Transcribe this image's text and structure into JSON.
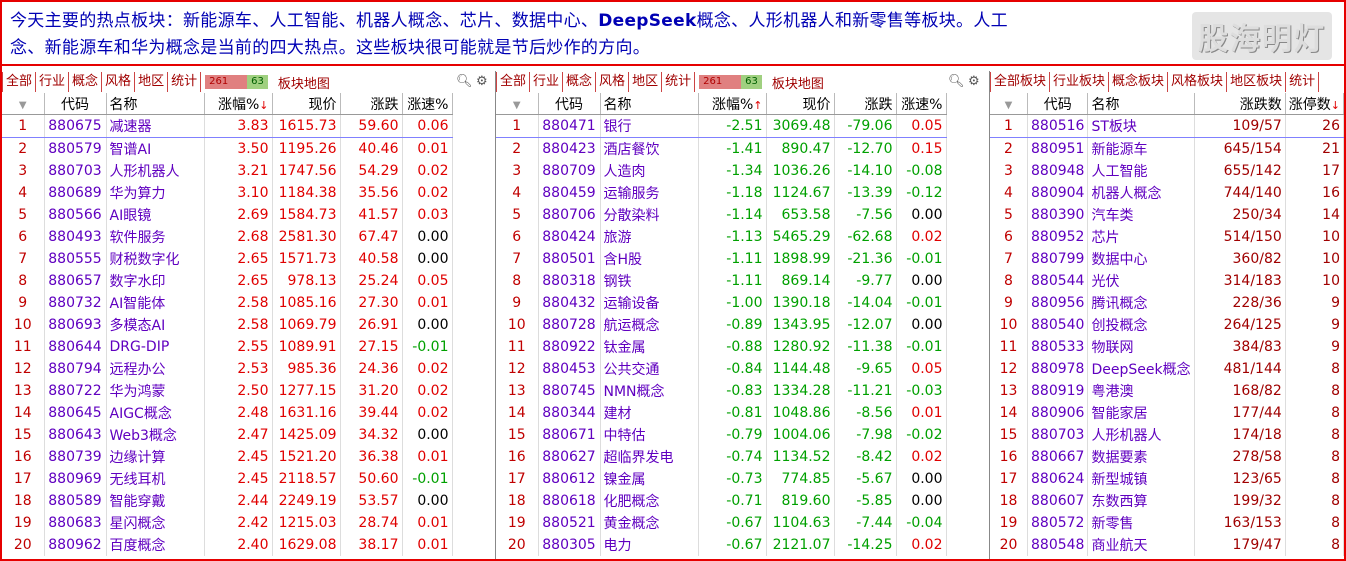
{
  "banner": {
    "line1_a": "今天主要的热点板块：新能源车、人工智能、机器人概念、芯片、数据中心、",
    "line1_b": "DeepSeek",
    "line1_c": "概念、人形机器人和新零售等板块。人工",
    "line2": "念、新能源车和华为概念是当前的四大热点。这些板块很可能就是节后炒作的方向。",
    "watermark": "股海明灯"
  },
  "panel1": {
    "tabs": [
      "全部",
      "行业",
      "概念",
      "风格",
      "地区",
      "统计"
    ],
    "ratio_up": "261",
    "ratio_down": "63",
    "map_label": "板块地图",
    "headers": [
      "",
      "代码",
      "名称",
      "涨幅%",
      "现价",
      "涨跌",
      "涨速%"
    ],
    "rows": [
      [
        "1",
        "880675",
        "减速器",
        "3.83",
        "1615.73",
        "59.60",
        "0.06"
      ],
      [
        "2",
        "880579",
        "智谱AI",
        "3.50",
        "1195.26",
        "40.46",
        "0.01"
      ],
      [
        "3",
        "880703",
        "人形机器人",
        "3.21",
        "1747.56",
        "54.29",
        "0.02"
      ],
      [
        "4",
        "880689",
        "华为算力",
        "3.10",
        "1184.38",
        "35.56",
        "0.02"
      ],
      [
        "5",
        "880566",
        "AI眼镜",
        "2.69",
        "1584.73",
        "41.57",
        "0.03"
      ],
      [
        "6",
        "880493",
        "软件服务",
        "2.68",
        "2581.30",
        "67.47",
        "0.00"
      ],
      [
        "7",
        "880555",
        "财税数字化",
        "2.65",
        "1571.73",
        "40.58",
        "0.00"
      ],
      [
        "8",
        "880657",
        "数字水印",
        "2.65",
        "978.13",
        "25.24",
        "0.05"
      ],
      [
        "9",
        "880732",
        "AI智能体",
        "2.58",
        "1085.16",
        "27.30",
        "0.01"
      ],
      [
        "10",
        "880693",
        "多模态AI",
        "2.58",
        "1069.79",
        "26.91",
        "0.00"
      ],
      [
        "11",
        "880644",
        "DRG-DIP",
        "2.55",
        "1089.91",
        "27.15",
        "-0.01"
      ],
      [
        "12",
        "880794",
        "远程办公",
        "2.53",
        "985.36",
        "24.36",
        "0.02"
      ],
      [
        "13",
        "880722",
        "华为鸿蒙",
        "2.50",
        "1277.15",
        "31.20",
        "0.02"
      ],
      [
        "14",
        "880645",
        "AIGC概念",
        "2.48",
        "1631.16",
        "39.44",
        "0.02"
      ],
      [
        "15",
        "880643",
        "Web3概念",
        "2.47",
        "1425.09",
        "34.32",
        "0.00"
      ],
      [
        "16",
        "880739",
        "边缘计算",
        "2.45",
        "1521.20",
        "36.38",
        "0.01"
      ],
      [
        "17",
        "880969",
        "无线耳机",
        "2.45",
        "2118.57",
        "50.60",
        "-0.01"
      ],
      [
        "18",
        "880589",
        "智能穿戴",
        "2.44",
        "2249.19",
        "53.57",
        "0.00"
      ],
      [
        "19",
        "880683",
        "星闪概念",
        "2.42",
        "1215.03",
        "28.74",
        "0.01"
      ],
      [
        "20",
        "880962",
        "百度概念",
        "2.40",
        "1629.08",
        "38.17",
        "0.01"
      ]
    ]
  },
  "panel2": {
    "tabs": [
      "全部",
      "行业",
      "概念",
      "风格",
      "地区",
      "统计"
    ],
    "ratio_up": "261",
    "ratio_down": "63",
    "map_label": "板块地图",
    "headers": [
      "",
      "代码",
      "名称",
      "涨幅%",
      "现价",
      "涨跌",
      "涨速%"
    ],
    "rows": [
      [
        "1",
        "880471",
        "银行",
        "-2.51",
        "3069.48",
        "-79.06",
        "0.05"
      ],
      [
        "2",
        "880423",
        "酒店餐饮",
        "-1.41",
        "890.47",
        "-12.70",
        "0.15"
      ],
      [
        "3",
        "880709",
        "人造肉",
        "-1.34",
        "1036.26",
        "-14.10",
        "-0.08"
      ],
      [
        "4",
        "880459",
        "运输服务",
        "-1.18",
        "1124.67",
        "-13.39",
        "-0.12"
      ],
      [
        "5",
        "880706",
        "分散染料",
        "-1.14",
        "653.58",
        "-7.56",
        "0.00"
      ],
      [
        "6",
        "880424",
        "旅游",
        "-1.13",
        "5465.29",
        "-62.68",
        "0.02"
      ],
      [
        "7",
        "880501",
        "含H股",
        "-1.11",
        "1898.99",
        "-21.36",
        "-0.01"
      ],
      [
        "8",
        "880318",
        "钢铁",
        "-1.11",
        "869.14",
        "-9.77",
        "0.00"
      ],
      [
        "9",
        "880432",
        "运输设备",
        "-1.00",
        "1390.18",
        "-14.04",
        "-0.01"
      ],
      [
        "10",
        "880728",
        "航运概念",
        "-0.89",
        "1343.95",
        "-12.07",
        "0.00"
      ],
      [
        "11",
        "880922",
        "钛金属",
        "-0.88",
        "1280.92",
        "-11.38",
        "-0.01"
      ],
      [
        "12",
        "880453",
        "公共交通",
        "-0.84",
        "1144.48",
        "-9.65",
        "0.05"
      ],
      [
        "13",
        "880745",
        "NMN概念",
        "-0.83",
        "1334.28",
        "-11.21",
        "-0.03"
      ],
      [
        "14",
        "880344",
        "建材",
        "-0.81",
        "1048.86",
        "-8.56",
        "0.01"
      ],
      [
        "15",
        "880671",
        "中特估",
        "-0.79",
        "1004.06",
        "-7.98",
        "-0.02"
      ],
      [
        "16",
        "880627",
        "超临界发电",
        "-0.74",
        "1134.52",
        "-8.42",
        "0.02"
      ],
      [
        "17",
        "880612",
        "镍金属",
        "-0.73",
        "774.85",
        "-5.67",
        "0.00"
      ],
      [
        "18",
        "880618",
        "化肥概念",
        "-0.71",
        "819.60",
        "-5.85",
        "0.00"
      ],
      [
        "19",
        "880521",
        "黄金概念",
        "-0.67",
        "1104.63",
        "-7.44",
        "-0.04"
      ],
      [
        "20",
        "880305",
        "电力",
        "-0.67",
        "2121.07",
        "-14.25",
        "0.02"
      ]
    ]
  },
  "panel3": {
    "tabs": [
      "全部板块",
      "行业板块",
      "概念板块",
      "风格板块",
      "地区板块",
      "统计"
    ],
    "headers": [
      "",
      "代码",
      "名称",
      "涨跌数",
      "涨停数"
    ],
    "rows": [
      [
        "1",
        "880516",
        "ST板块",
        "109/57",
        "26"
      ],
      [
        "2",
        "880951",
        "新能源车",
        "645/154",
        "21"
      ],
      [
        "3",
        "880948",
        "人工智能",
        "655/142",
        "17"
      ],
      [
        "4",
        "880904",
        "机器人概念",
        "744/140",
        "16"
      ],
      [
        "5",
        "880390",
        "汽车类",
        "250/34",
        "14"
      ],
      [
        "6",
        "880952",
        "芯片",
        "514/150",
        "10"
      ],
      [
        "7",
        "880799",
        "数据中心",
        "360/82",
        "10"
      ],
      [
        "8",
        "880544",
        "光伏",
        "314/183",
        "10"
      ],
      [
        "9",
        "880956",
        "腾讯概念",
        "228/36",
        "9"
      ],
      [
        "10",
        "880540",
        "创投概念",
        "264/125",
        "9"
      ],
      [
        "11",
        "880533",
        "物联网",
        "384/83",
        "9"
      ],
      [
        "12",
        "880978",
        "DeepSeek概念",
        "481/144",
        "8"
      ],
      [
        "13",
        "880919",
        "粤港澳",
        "168/82",
        "8"
      ],
      [
        "14",
        "880906",
        "智能家居",
        "177/44",
        "8"
      ],
      [
        "15",
        "880703",
        "人形机器人",
        "174/18",
        "8"
      ],
      [
        "16",
        "880667",
        "数据要素",
        "278/58",
        "8"
      ],
      [
        "17",
        "880624",
        "新型城镇",
        "123/65",
        "8"
      ],
      [
        "18",
        "880607",
        "东数西算",
        "199/32",
        "8"
      ],
      [
        "19",
        "880572",
        "新零售",
        "163/153",
        "8"
      ],
      [
        "20",
        "880548",
        "商业航天",
        "179/47",
        "8"
      ]
    ]
  },
  "colors": {
    "up": "#e00000",
    "down": "#00a000",
    "code": "#6000c0",
    "frame": "#e60000",
    "banner_text": "#0000b4"
  },
  "icons": {
    "search": "search-icon",
    "settings": "gear-icon",
    "sort_desc": "sort-desc-arrow-icon",
    "sort_asc": "sort-asc-arrow-icon"
  }
}
